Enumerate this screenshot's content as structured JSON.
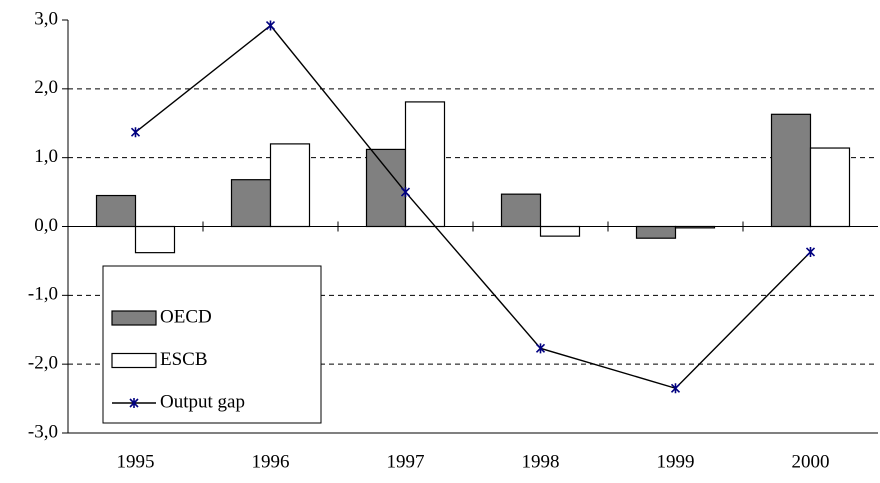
{
  "chart_data": {
    "type": "bar-line",
    "categories": [
      "1995",
      "1996",
      "1997",
      "1998",
      "1999",
      "2000"
    ],
    "series": [
      {
        "name": "OECD",
        "type": "bar",
        "color": "#808080",
        "values": [
          0.45,
          0.68,
          1.12,
          0.47,
          -0.17,
          1.63
        ]
      },
      {
        "name": "ESCB",
        "type": "bar",
        "color": "#ffffff",
        "values": [
          -0.38,
          1.2,
          1.81,
          -0.14,
          -0.02,
          1.14
        ]
      },
      {
        "name": "Output gap",
        "type": "line",
        "color": "#000000",
        "marker_color": "#000080",
        "values": [
          1.37,
          2.92,
          0.5,
          -1.77,
          -2.35,
          -0.37
        ]
      }
    ],
    "ylim": [
      -3,
      3
    ],
    "yticks": [
      {
        "value": -3,
        "label": "-3,0"
      },
      {
        "value": -2,
        "label": "-2,0"
      },
      {
        "value": -1,
        "label": "-1,0"
      },
      {
        "value": 0,
        "label": "0,0"
      },
      {
        "value": 1,
        "label": "1,0"
      },
      {
        "value": 2,
        "label": "2,0"
      },
      {
        "value": 3,
        "label": "3,0"
      }
    ],
    "grid": true,
    "legend_position": "lower left"
  }
}
